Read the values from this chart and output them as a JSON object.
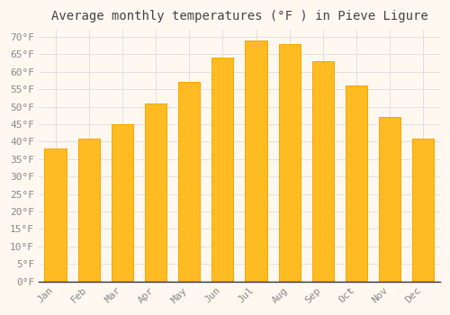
{
  "title": "Average monthly temperatures (°F ) in Pieve Ligure",
  "months": [
    "Jan",
    "Feb",
    "Mar",
    "Apr",
    "May",
    "Jun",
    "Jul",
    "Aug",
    "Sep",
    "Oct",
    "Nov",
    "Dec"
  ],
  "values": [
    38,
    41,
    45,
    51,
    57,
    64,
    69,
    68,
    63,
    56,
    47,
    41
  ],
  "bar_color": "#FFBB22",
  "bar_edge_color": "#F5A800",
  "background_color": "#FFF8F0",
  "grid_color": "#DDDDDD",
  "ylim": [
    0,
    72
  ],
  "yticks": [
    0,
    5,
    10,
    15,
    20,
    25,
    30,
    35,
    40,
    45,
    50,
    55,
    60,
    65,
    70
  ],
  "title_fontsize": 10,
  "tick_fontsize": 8,
  "tick_color": "#888888",
  "font_family": "monospace",
  "bar_width": 0.65
}
